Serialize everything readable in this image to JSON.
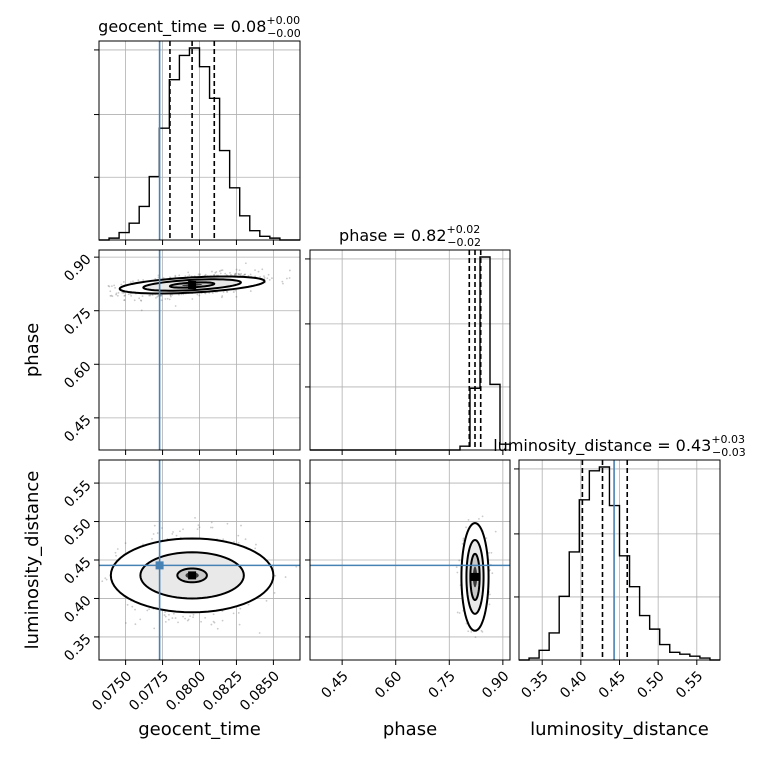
{
  "chart_data": {
    "type": "corner",
    "colors": {
      "truth": "#4682b4",
      "hist": "#000000",
      "grid": "#b0b0b0",
      "points": "#666666"
    },
    "parameters": [
      {
        "name": "geocent_time",
        "range": [
          0.0732,
          0.0868
        ],
        "truth": 0.0773,
        "ticks": [
          0.075,
          0.0775,
          0.08,
          0.0825,
          0.085
        ],
        "tick_labels": [
          "0.0750",
          "0.0775",
          "0.0800",
          "0.0825",
          "0.0850"
        ],
        "title": {
          "main": "geocent_time = 0.08",
          "sup": "+0.00",
          "sub": "−0.00"
        },
        "quantiles": [
          0.078,
          0.0795,
          0.081
        ],
        "hist": [
          0.0,
          0.01,
          0.04,
          0.09,
          0.18,
          0.34,
          0.6,
          0.86,
          0.99,
          1.03,
          0.93,
          0.76,
          0.48,
          0.28,
          0.13,
          0.05,
          0.02,
          0.01,
          0.0,
          0.0
        ]
      },
      {
        "name": "phase",
        "range": [
          0.36,
          0.92
        ],
        "truth": null,
        "ticks": [
          0.45,
          0.6,
          0.75,
          0.9
        ],
        "tick_labels": [
          "0.45",
          "0.60",
          "0.75",
          "0.90"
        ],
        "title": {
          "main": "phase = 0.82",
          "sup": "+0.02",
          "sub": "−0.02"
        },
        "quantiles": [
          0.806,
          0.822,
          0.838
        ],
        "hist": [
          0,
          0,
          0,
          0,
          0,
          0,
          0,
          0,
          0,
          0,
          0,
          0,
          0,
          0,
          0,
          0.02,
          0.32,
          1.0,
          0.34,
          0.03
        ]
      },
      {
        "name": "luminosity_distance",
        "range": [
          0.32,
          0.58
        ],
        "truth": 0.443,
        "ticks": [
          0.35,
          0.4,
          0.45,
          0.5,
          0.55
        ],
        "tick_labels": [
          "0.35",
          "0.40",
          "0.45",
          "0.50",
          "0.55"
        ],
        "title": {
          "main": "luminosity_distance = 0.43",
          "sup": "+0.03",
          "sub": "−0.03"
        },
        "quantiles": [
          0.402,
          0.428,
          0.46
        ],
        "hist": [
          0.0,
          0.01,
          0.05,
          0.14,
          0.33,
          0.56,
          0.83,
          0.98,
          1.0,
          0.8,
          0.54,
          0.38,
          0.23,
          0.16,
          0.08,
          0.04,
          0.03,
          0.02,
          0.01,
          0.0
        ]
      }
    ],
    "scatter_pairs": [
      {
        "x": 0,
        "y": 1,
        "mean": [
          0.0795,
          0.822
        ],
        "sd": [
          0.0022,
          0.016
        ],
        "rho": 0.45,
        "contours": [
          {
            "level": "outer",
            "half_width": [
              0.0049,
              0.0238
            ]
          },
          {
            "level": "middle",
            "half_width": [
              0.0033,
              0.016
            ]
          },
          {
            "level": "inner",
            "half_width": [
              0.0015,
              0.0075
            ]
          }
        ]
      },
      {
        "x": 0,
        "y": 2,
        "mean": [
          0.0795,
          0.43
        ],
        "sd": [
          0.0022,
          0.026
        ],
        "rho": 0.0,
        "contours": [
          {
            "level": "outer",
            "half_width": [
              0.0055,
              0.048
            ]
          },
          {
            "level": "middle",
            "half_width": [
              0.0035,
              0.03
            ]
          },
          {
            "level": "inner",
            "half_width": [
              0.001,
              0.009
            ]
          }
        ]
      },
      {
        "x": 1,
        "y": 2,
        "mean": [
          0.822,
          0.428
        ],
        "sd": [
          0.016,
          0.027
        ],
        "rho": 0.0,
        "contours": [
          {
            "level": "outer",
            "half_width": [
              0.038,
              0.07
            ]
          },
          {
            "level": "middle",
            "half_width": [
              0.024,
              0.048
            ]
          },
          {
            "level": "inner",
            "half_width": [
              0.013,
              0.03
            ]
          }
        ]
      }
    ]
  }
}
